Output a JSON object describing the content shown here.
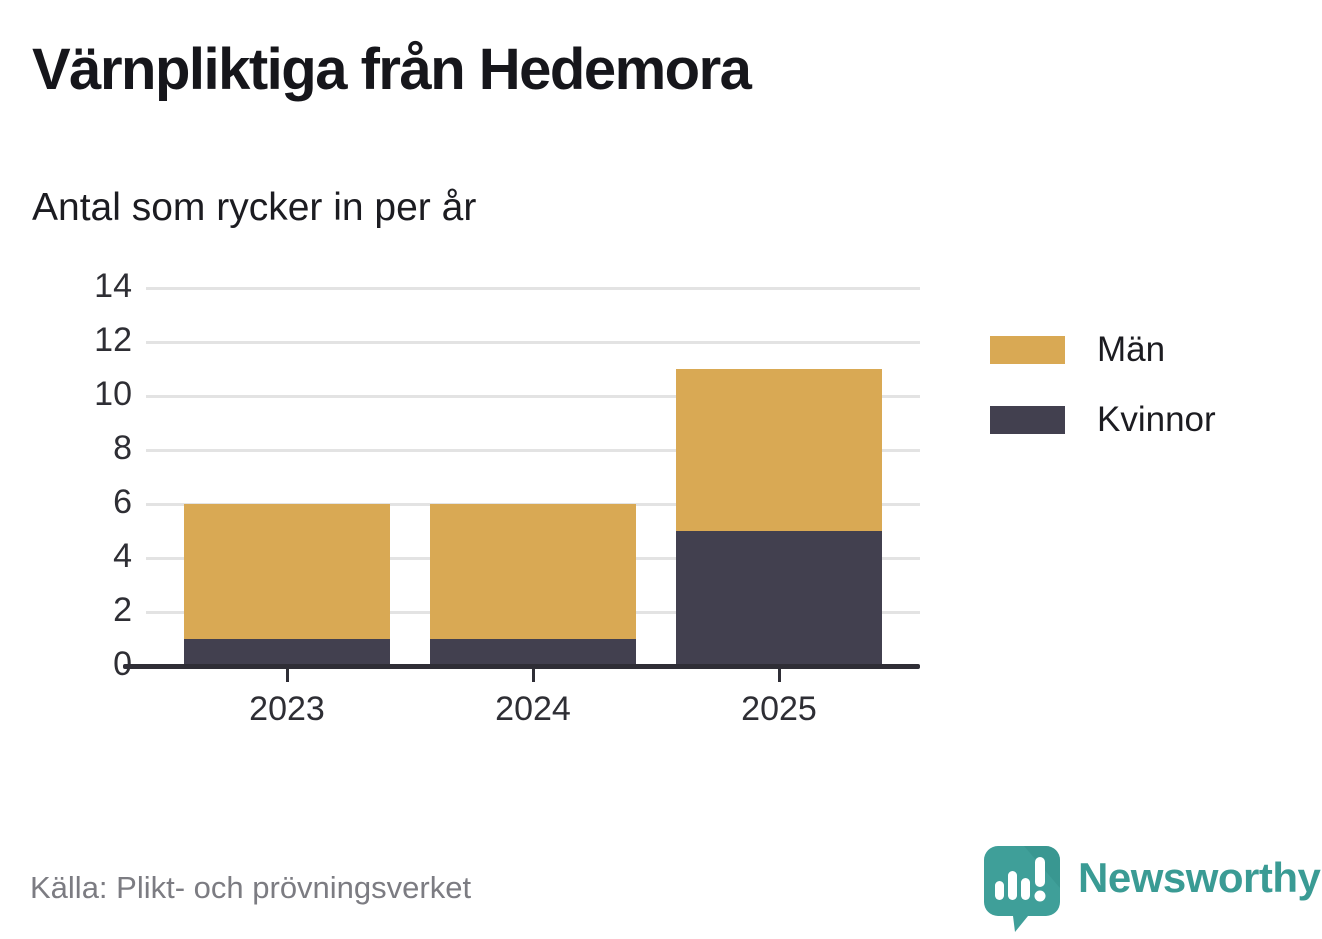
{
  "header": {
    "title": "Värnpliktiga från Hedemora",
    "subtitle": "Antal som rycker in per år"
  },
  "chart_data": {
    "type": "bar",
    "stacked": true,
    "title": "Värnpliktiga från Hedemora",
    "subtitle": "Antal som rycker in per år",
    "xlabel": "",
    "ylabel": "",
    "categories": [
      "2023",
      "2024",
      "2025"
    ],
    "series": [
      {
        "name": "Män",
        "color": "#d9a954",
        "values": [
          5,
          5,
          6
        ]
      },
      {
        "name": "Kvinnor",
        "color": "#42404f",
        "values": [
          1,
          1,
          5
        ]
      }
    ],
    "stack_order_bottom_to_top": [
      "Kvinnor",
      "Män"
    ],
    "totals": [
      6,
      6,
      11
    ],
    "ylim": [
      0,
      14
    ],
    "yticks": [
      0,
      2,
      4,
      6,
      8,
      10,
      12,
      14
    ],
    "grid": "horizontal",
    "legend_position": "right"
  },
  "footer": {
    "source": "Källa: Plikt- och prövningsverket",
    "brand": "Newsworthy"
  },
  "colors": {
    "axis": "#2f2e36",
    "gridline": "#e3e3e3",
    "brand_teal": "#3f9f99",
    "brand_teal_dark": "#35908a",
    "source_gray": "#7c7c82"
  }
}
